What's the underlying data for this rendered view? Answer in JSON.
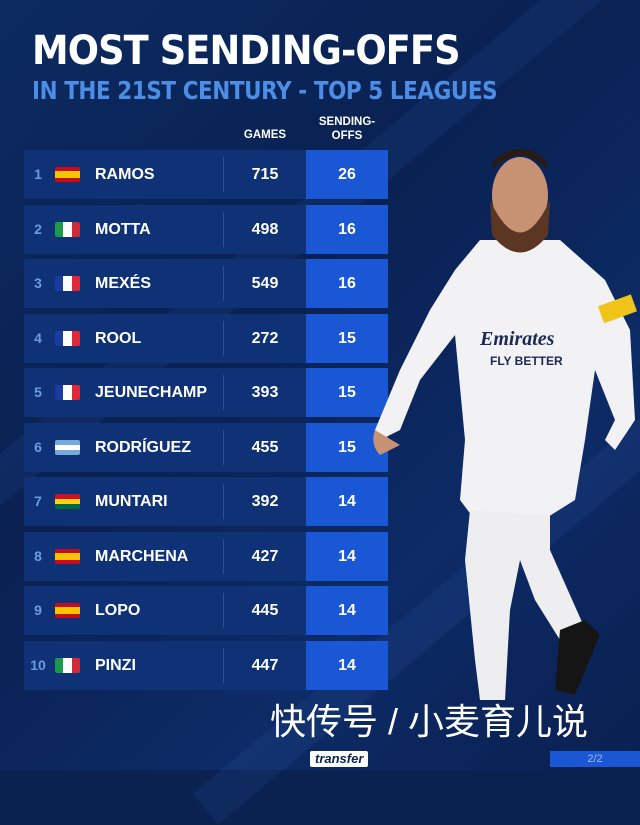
{
  "header": {
    "title": "MOST SENDING-OFFS",
    "subtitle": "IN THE 21ST CENTURY - TOP 5 LEAGUES"
  },
  "chart_data": {
    "type": "table",
    "title": "MOST SENDING-OFFS",
    "subtitle": "IN THE 21ST CENTURY - TOP 5 LEAGUES",
    "columns": [
      "",
      "",
      "",
      "GAMES",
      "SENDING-OFFS"
    ],
    "column_headers": {
      "games": "GAMES",
      "sending_offs_line1": "SENDING-",
      "sending_offs_line2": "OFFS"
    },
    "rows": [
      {
        "rank": "1",
        "flag": "spain",
        "name": "RAMOS",
        "games": "715",
        "sending_offs": "26"
      },
      {
        "rank": "2",
        "flag": "italy",
        "name": "MOTTA",
        "games": "498",
        "sending_offs": "16"
      },
      {
        "rank": "3",
        "flag": "france",
        "name": "MEXÉS",
        "games": "549",
        "sending_offs": "16"
      },
      {
        "rank": "4",
        "flag": "france",
        "name": "ROOL",
        "games": "272",
        "sending_offs": "15"
      },
      {
        "rank": "5",
        "flag": "france",
        "name": "JEUNECHAMP",
        "games": "393",
        "sending_offs": "15"
      },
      {
        "rank": "6",
        "flag": "argentina",
        "name": "RODRÍGUEZ",
        "games": "455",
        "sending_offs": "15"
      },
      {
        "rank": "7",
        "flag": "ghana",
        "name": "MUNTARI",
        "games": "392",
        "sending_offs": "14"
      },
      {
        "rank": "8",
        "flag": "spain",
        "name": "MARCHENA",
        "games": "427",
        "sending_offs": "14"
      },
      {
        "rank": "9",
        "flag": "spain",
        "name": "LOPO",
        "games": "445",
        "sending_offs": "14"
      },
      {
        "rank": "10",
        "flag": "italy",
        "name": "PINZI",
        "games": "447",
        "sending_offs": "14"
      }
    ]
  },
  "player_shirt": {
    "sponsor": "Emirates",
    "tagline": "FLY BETTER"
  },
  "watermark": "快传号 / 小麦育儿说",
  "footer": {
    "logo": "transfer",
    "page": "2/2"
  },
  "colors": {
    "background": "#0a2250",
    "row": "#0f3276",
    "highlight": "#1957d4",
    "subtitle": "#4c8ee6"
  }
}
